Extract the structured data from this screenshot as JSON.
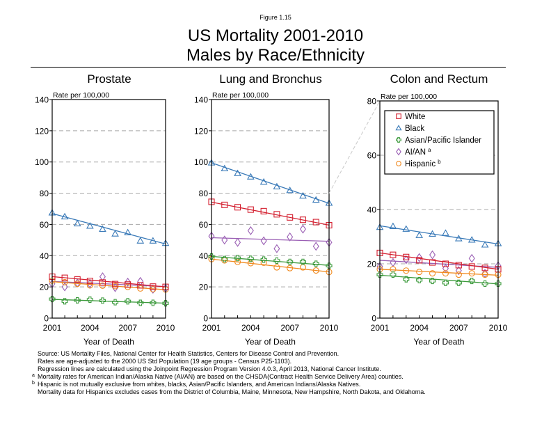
{
  "figure_label": "Figure 1.15",
  "title_line1": "US Mortality 2001-2010",
  "title_line2": "Males by Race/Ethnicity",
  "legend": {
    "items": [
      {
        "key": "white",
        "label": "White",
        "sup": "",
        "marker": "square",
        "color": "#d42030"
      },
      {
        "key": "black",
        "label": "Black",
        "sup": "",
        "marker": "triangle",
        "color": "#3a7ab8"
      },
      {
        "key": "asian",
        "label": "Asian/Pacific Islander",
        "sup": "",
        "marker": "plus",
        "color": "#3c9a3c"
      },
      {
        "key": "aian",
        "label": "AI/AN",
        "sup": "a",
        "marker": "diamond",
        "color": "#9a5fb4"
      },
      {
        "key": "hispanic",
        "label": "Hispanic",
        "sup": "b",
        "marker": "circle",
        "color": "#f08a20"
      }
    ]
  },
  "chart_data": [
    {
      "type": "line",
      "title": "Prostate",
      "xlabel": "Year of Death",
      "ylabel": "Rate per 100,000",
      "x": [
        2001,
        2002,
        2003,
        2004,
        2005,
        2006,
        2007,
        2008,
        2009,
        2010
      ],
      "xticks": [
        "2001",
        "2004",
        "2007",
        "2010"
      ],
      "ylim": [
        0,
        140
      ],
      "yticks": [
        0,
        20,
        40,
        60,
        80,
        100,
        120,
        140
      ],
      "grid": "horizontal-dashed",
      "series": [
        {
          "key": "white",
          "name": "White",
          "values": [
            26.5,
            25.8,
            24.8,
            23.8,
            22.8,
            21.8,
            21.5,
            21.0,
            20.2,
            20.0
          ],
          "trend": [
            26.6,
            20.0
          ]
        },
        {
          "key": "black",
          "name": "Black",
          "values": [
            67.5,
            65.0,
            60.5,
            59.0,
            57.0,
            54.0,
            54.8,
            49.5,
            49.5,
            48.0
          ],
          "trend": [
            67.0,
            47.5
          ]
        },
        {
          "key": "asian",
          "name": "Asian/Pacific Islander",
          "values": [
            12.2,
            10.8,
            11.4,
            11.8,
            11.2,
            10.2,
            10.8,
            9.8,
            9.8,
            9.5
          ],
          "trend": [
            12.0,
            9.6
          ]
        },
        {
          "key": "aian",
          "name": "AI/AN",
          "values": [
            22.0,
            20.0,
            22.5,
            22.0,
            26.5,
            19.5,
            23.0,
            23.5,
            18.5,
            19.0
          ],
          "trend": [
            23.5,
            20.2
          ]
        },
        {
          "key": "hispanic",
          "name": "Hispanic",
          "values": [
            24.0,
            23.0,
            22.0,
            21.0,
            20.8,
            20.5,
            20.0,
            19.0,
            18.5,
            18.3
          ],
          "trend": [
            23.3,
            18.2
          ]
        }
      ]
    },
    {
      "type": "line",
      "title": "Lung and Bronchus",
      "xlabel": "Year of Death",
      "ylabel": "Rate per 100,000",
      "x": [
        2001,
        2002,
        2003,
        2004,
        2005,
        2006,
        2007,
        2008,
        2009,
        2010
      ],
      "xticks": [
        "2001",
        "2004",
        "2007",
        "2010"
      ],
      "ylim": [
        0,
        140
      ],
      "yticks": [
        0,
        20,
        40,
        60,
        80,
        100,
        120,
        140
      ],
      "grid": "horizontal-dashed",
      "series": [
        {
          "key": "white",
          "name": "White",
          "values": [
            74.5,
            72.5,
            71.0,
            69.5,
            68.5,
            66.5,
            64.5,
            63.0,
            61.5,
            59.5
          ],
          "trend": [
            74.3,
            59.6
          ]
        },
        {
          "key": "black",
          "name": "Black",
          "values": [
            99.5,
            95.8,
            92.7,
            90.5,
            87.2,
            84.2,
            81.8,
            78.3,
            75.7,
            73.7
          ],
          "trend": [
            99.5,
            73.5
          ]
        },
        {
          "key": "asian",
          "name": "Asian/Pacific Islander",
          "values": [
            39.5,
            37.8,
            38.5,
            38.0,
            37.5,
            36.8,
            36.0,
            36.0,
            34.8,
            33.5
          ],
          "trend": [
            39.5,
            33.8
          ]
        },
        {
          "key": "aian",
          "name": "AI/AN",
          "values": [
            52.5,
            50.0,
            48.5,
            56.0,
            49.5,
            44.5,
            52.0,
            57.0,
            46.0,
            48.5
          ],
          "trend": [
            51.5,
            49.2
          ]
        },
        {
          "key": "hispanic",
          "name": "Hispanic",
          "values": [
            37.8,
            37.0,
            36.0,
            35.2,
            35.5,
            32.5,
            32.0,
            32.5,
            30.5,
            29.5
          ],
          "trend": [
            37.8,
            29.6
          ]
        }
      ]
    },
    {
      "type": "line",
      "title": "Colon and Rectum",
      "xlabel": "Year of Death",
      "ylabel": "Rate per 100,000",
      "x": [
        2001,
        2002,
        2003,
        2004,
        2005,
        2006,
        2007,
        2008,
        2009,
        2010
      ],
      "xticks": [
        "2001",
        "2004",
        "2007",
        "2010"
      ],
      "ylim": [
        0,
        80
      ],
      "yticks": [
        0,
        20,
        40,
        60,
        80
      ],
      "grid": "horizontal-dashed",
      "legend_position": "top",
      "series": [
        {
          "key": "white",
          "name": "White",
          "values": [
            24.0,
            23.3,
            22.5,
            21.3,
            20.5,
            20.0,
            19.5,
            19.0,
            18.5,
            18.0
          ],
          "trend": [
            24.0,
            18.0
          ]
        },
        {
          "key": "black",
          "name": "Black",
          "values": [
            33.5,
            33.8,
            32.8,
            30.5,
            31.0,
            31.3,
            29.3,
            28.8,
            27.0,
            27.5
          ],
          "trend": [
            34.0,
            27.3
          ]
        },
        {
          "key": "asian",
          "name": "Asian/Pacific Islander",
          "values": [
            16.0,
            16.0,
            14.3,
            14.0,
            13.7,
            13.0,
            13.0,
            13.7,
            12.7,
            12.7
          ],
          "trend": [
            15.8,
            12.6
          ]
        },
        {
          "key": "aian",
          "name": "AI/AN",
          "values": [
            19.0,
            20.5,
            21.5,
            22.3,
            23.3,
            18.3,
            17.5,
            22.0,
            16.5,
            19.3
          ],
          "trend": [
            21.3,
            18.7
          ]
        },
        {
          "key": "hispanic",
          "name": "Hispanic",
          "values": [
            18.0,
            18.0,
            17.5,
            17.0,
            16.5,
            16.5,
            16.0,
            16.5,
            16.0,
            16.0
          ],
          "trend": [
            18.0,
            15.8
          ]
        }
      ]
    }
  ],
  "footnotes": [
    {
      "mark": "",
      "text": "Source:  US Mortality Files, National Center for Health Statistics, Centers for Disease Control and Prevention."
    },
    {
      "mark": "",
      "text": "Rates are age-adjusted to the 2000 US Std Population (19 age groups - Census P25-1103)."
    },
    {
      "mark": "",
      "text": "Regression lines are calculated using the Joinpoint Regression Program Version 4.0.3, April 2013, National Cancer Institute."
    },
    {
      "mark": "a",
      "text": "Mortality rates for American Indian/Alaska Native (AI/AN) are based on the CHSDA(Contract Health Service Delivery Area) counties."
    },
    {
      "mark": "b",
      "text": "Hispanic is not mutually exclusive from whites, blacks, Asian/Pacific Islanders, and American Indians/Alaska Natives."
    },
    {
      "mark": "",
      "text": "Mortality data for Hispanics excludes cases from the District of Columbia, Maine, Minnesota, New Hampshire, North Dakota, and Oklahoma."
    }
  ]
}
